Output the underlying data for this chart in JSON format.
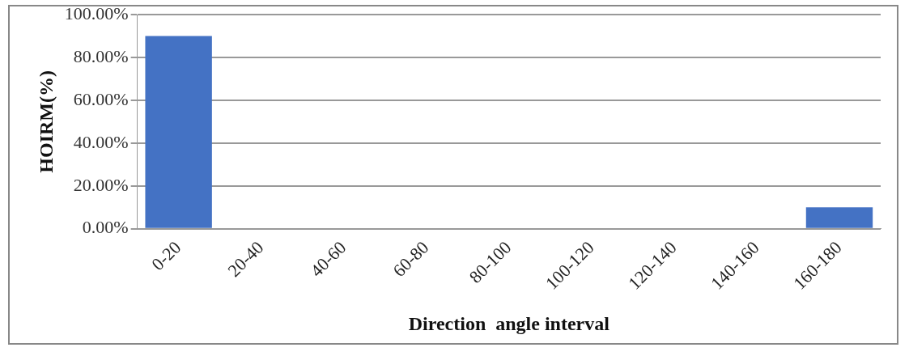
{
  "chart_data": {
    "type": "bar",
    "xlabel": "Direction  angle interval",
    "ylabel": "HOIRM(%)",
    "categories": [
      "0-20",
      "20-40",
      "40-60",
      "60-80",
      "80-100",
      "100-120",
      "120-140",
      "140-160",
      "160-180"
    ],
    "values": [
      90,
      0,
      0,
      0,
      0,
      0,
      0,
      0,
      10
    ],
    "color": "#4472c4",
    "ylim": [
      0,
      100
    ],
    "yticks": [
      {
        "value": 0,
        "label": "0.00%"
      },
      {
        "value": 20,
        "label": "20.00%"
      },
      {
        "value": 40,
        "label": "40.00%"
      },
      {
        "value": 60,
        "label": "60.00%"
      },
      {
        "value": 80,
        "label": "80.00%"
      },
      {
        "value": 100,
        "label": "100.00%"
      }
    ],
    "grid": "y"
  }
}
